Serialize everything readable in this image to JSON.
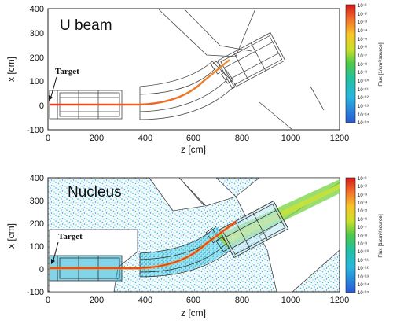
{
  "panels": [
    {
      "title": "U beam",
      "target_label": "Target",
      "xlabel": "z [cm]",
      "ylabel": "x [cm]",
      "x_ticks": [
        "0",
        "200",
        "400",
        "600",
        "800",
        "1000",
        "1200"
      ],
      "y_ticks": [
        "400",
        "300",
        "200",
        "100",
        "0",
        "-100"
      ],
      "colorbar_label": "Flux [1/cm²/source]",
      "colorbar_ticks": [
        "10⁻¹",
        "10⁻²",
        "10⁻³",
        "10⁻⁴",
        "10⁻⁵",
        "10⁻⁶",
        "10⁻⁷",
        "10⁻⁸",
        "10⁻⁹",
        "10⁻¹⁰",
        "10⁻¹¹",
        "10⁻¹²",
        "10⁻¹³",
        "10⁻¹⁴",
        "10⁻¹⁵"
      ]
    },
    {
      "title": "Nucleus",
      "target_label": "Target",
      "xlabel": "z [cm]",
      "ylabel": "x [cm]",
      "x_ticks": [
        "0",
        "200",
        "400",
        "600",
        "800",
        "1000",
        "1200"
      ],
      "y_ticks": [
        "400",
        "300",
        "200",
        "100",
        "0",
        "-100"
      ],
      "colorbar_label": "Flux [1/cm²/source]",
      "colorbar_ticks": [
        "10⁻¹",
        "10⁻²",
        "10⁻³",
        "10⁻⁴",
        "10⁻⁵",
        "10⁻⁶",
        "10⁻⁷",
        "10⁻⁸",
        "10⁻⁹",
        "10⁻¹⁰",
        "10⁻¹¹",
        "10⁻¹²",
        "10⁻¹³",
        "10⁻¹⁴",
        "10⁻¹⁵"
      ]
    }
  ]
}
